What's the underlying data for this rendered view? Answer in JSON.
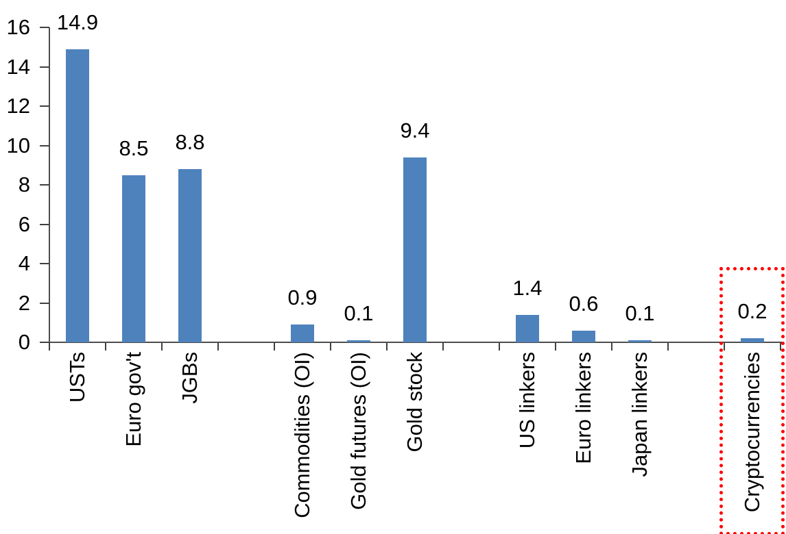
{
  "chart_data": {
    "type": "bar",
    "title": "",
    "xlabel": "",
    "ylabel": "",
    "categories": [
      "USTs",
      "Euro gov't",
      "JGBs",
      "Commodities (OI)",
      "Gold futures (OI)",
      "Gold stock",
      "US linkers",
      "Euro linkers",
      "Japan linkers",
      "Cryptocurrencies"
    ],
    "values": [
      14.9,
      8.5,
      8.8,
      0.9,
      0.1,
      9.4,
      1.4,
      0.6,
      0.1,
      0.2
    ],
    "value_labels": [
      "14.9",
      "8.5",
      "8.8",
      "0.9",
      "0.1",
      "9.4",
      "1.4",
      "0.6",
      "0.1",
      "0.2"
    ],
    "slots": [
      0,
      1,
      2,
      4,
      5,
      6,
      8,
      9,
      10,
      12
    ],
    "n_slots": 13,
    "gap_slots": [
      3,
      7,
      11
    ],
    "yticks": [
      0,
      2,
      4,
      6,
      8,
      10,
      12,
      14,
      16
    ],
    "ylim": [
      0,
      16
    ],
    "grid": false,
    "legend": false,
    "bar_color": "#4E82BC",
    "axis_color": "#4d4d4d",
    "text_color": "#000000",
    "highlight": {
      "category": "Cryptocurrencies",
      "slot": 12,
      "color": "#FF0000",
      "style": "dotted-box"
    }
  }
}
